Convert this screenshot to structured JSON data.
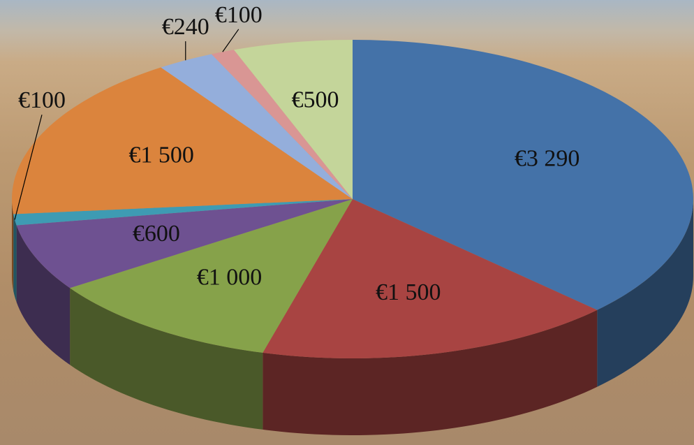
{
  "chart_data": {
    "type": "pie",
    "values": [
      3290,
      1500,
      1000,
      600,
      100,
      1500,
      240,
      100,
      500
    ],
    "value_labels": [
      "€3 290",
      "€1 500",
      "€1 000",
      "€600",
      "€100",
      "€1 500",
      "€240",
      "€100",
      "€500"
    ],
    "colors": [
      "#4472a8",
      "#a84442",
      "#86a24a",
      "#6e5191",
      "#3e9bb3",
      "#db843d",
      "#94aedb",
      "#d99694",
      "#c4d59a"
    ]
  }
}
